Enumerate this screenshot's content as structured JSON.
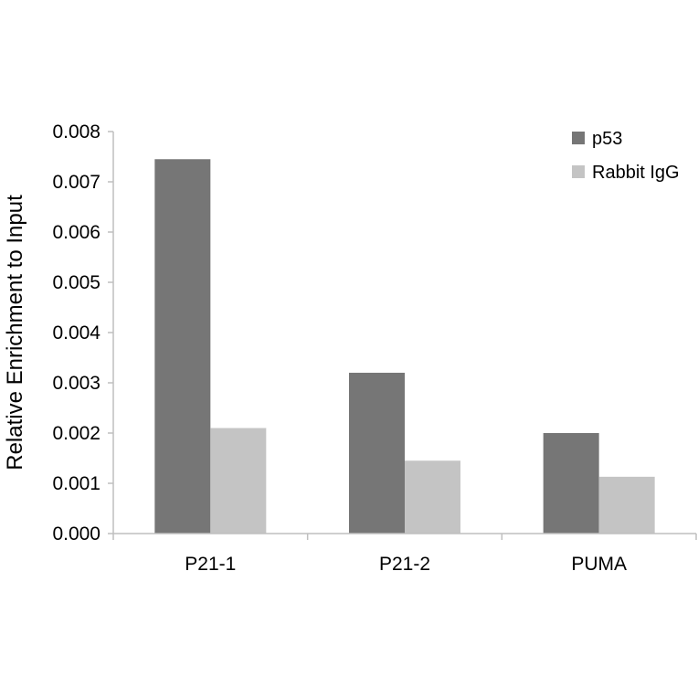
{
  "chart_data": {
    "type": "bar",
    "title": "",
    "xlabel": "",
    "ylabel": "Relative Enrichment to Input",
    "categories": [
      "P21-1",
      "P21-2",
      "PUMA"
    ],
    "series": [
      {
        "name": "p53",
        "values": [
          0.00745,
          0.0032,
          0.002
        ],
        "color": "#767676"
      },
      {
        "name": "Rabbit IgG",
        "values": [
          0.0021,
          0.00145,
          0.00113
        ],
        "color": "#c4c4c4"
      }
    ],
    "ylim": [
      0,
      0.008
    ],
    "yticks": [
      "0.000",
      "0.001",
      "0.002",
      "0.003",
      "0.004",
      "0.005",
      "0.006",
      "0.007",
      "0.008"
    ],
    "grid": false,
    "legend_position": "top-right",
    "axis_color": "#bfbfbf"
  }
}
